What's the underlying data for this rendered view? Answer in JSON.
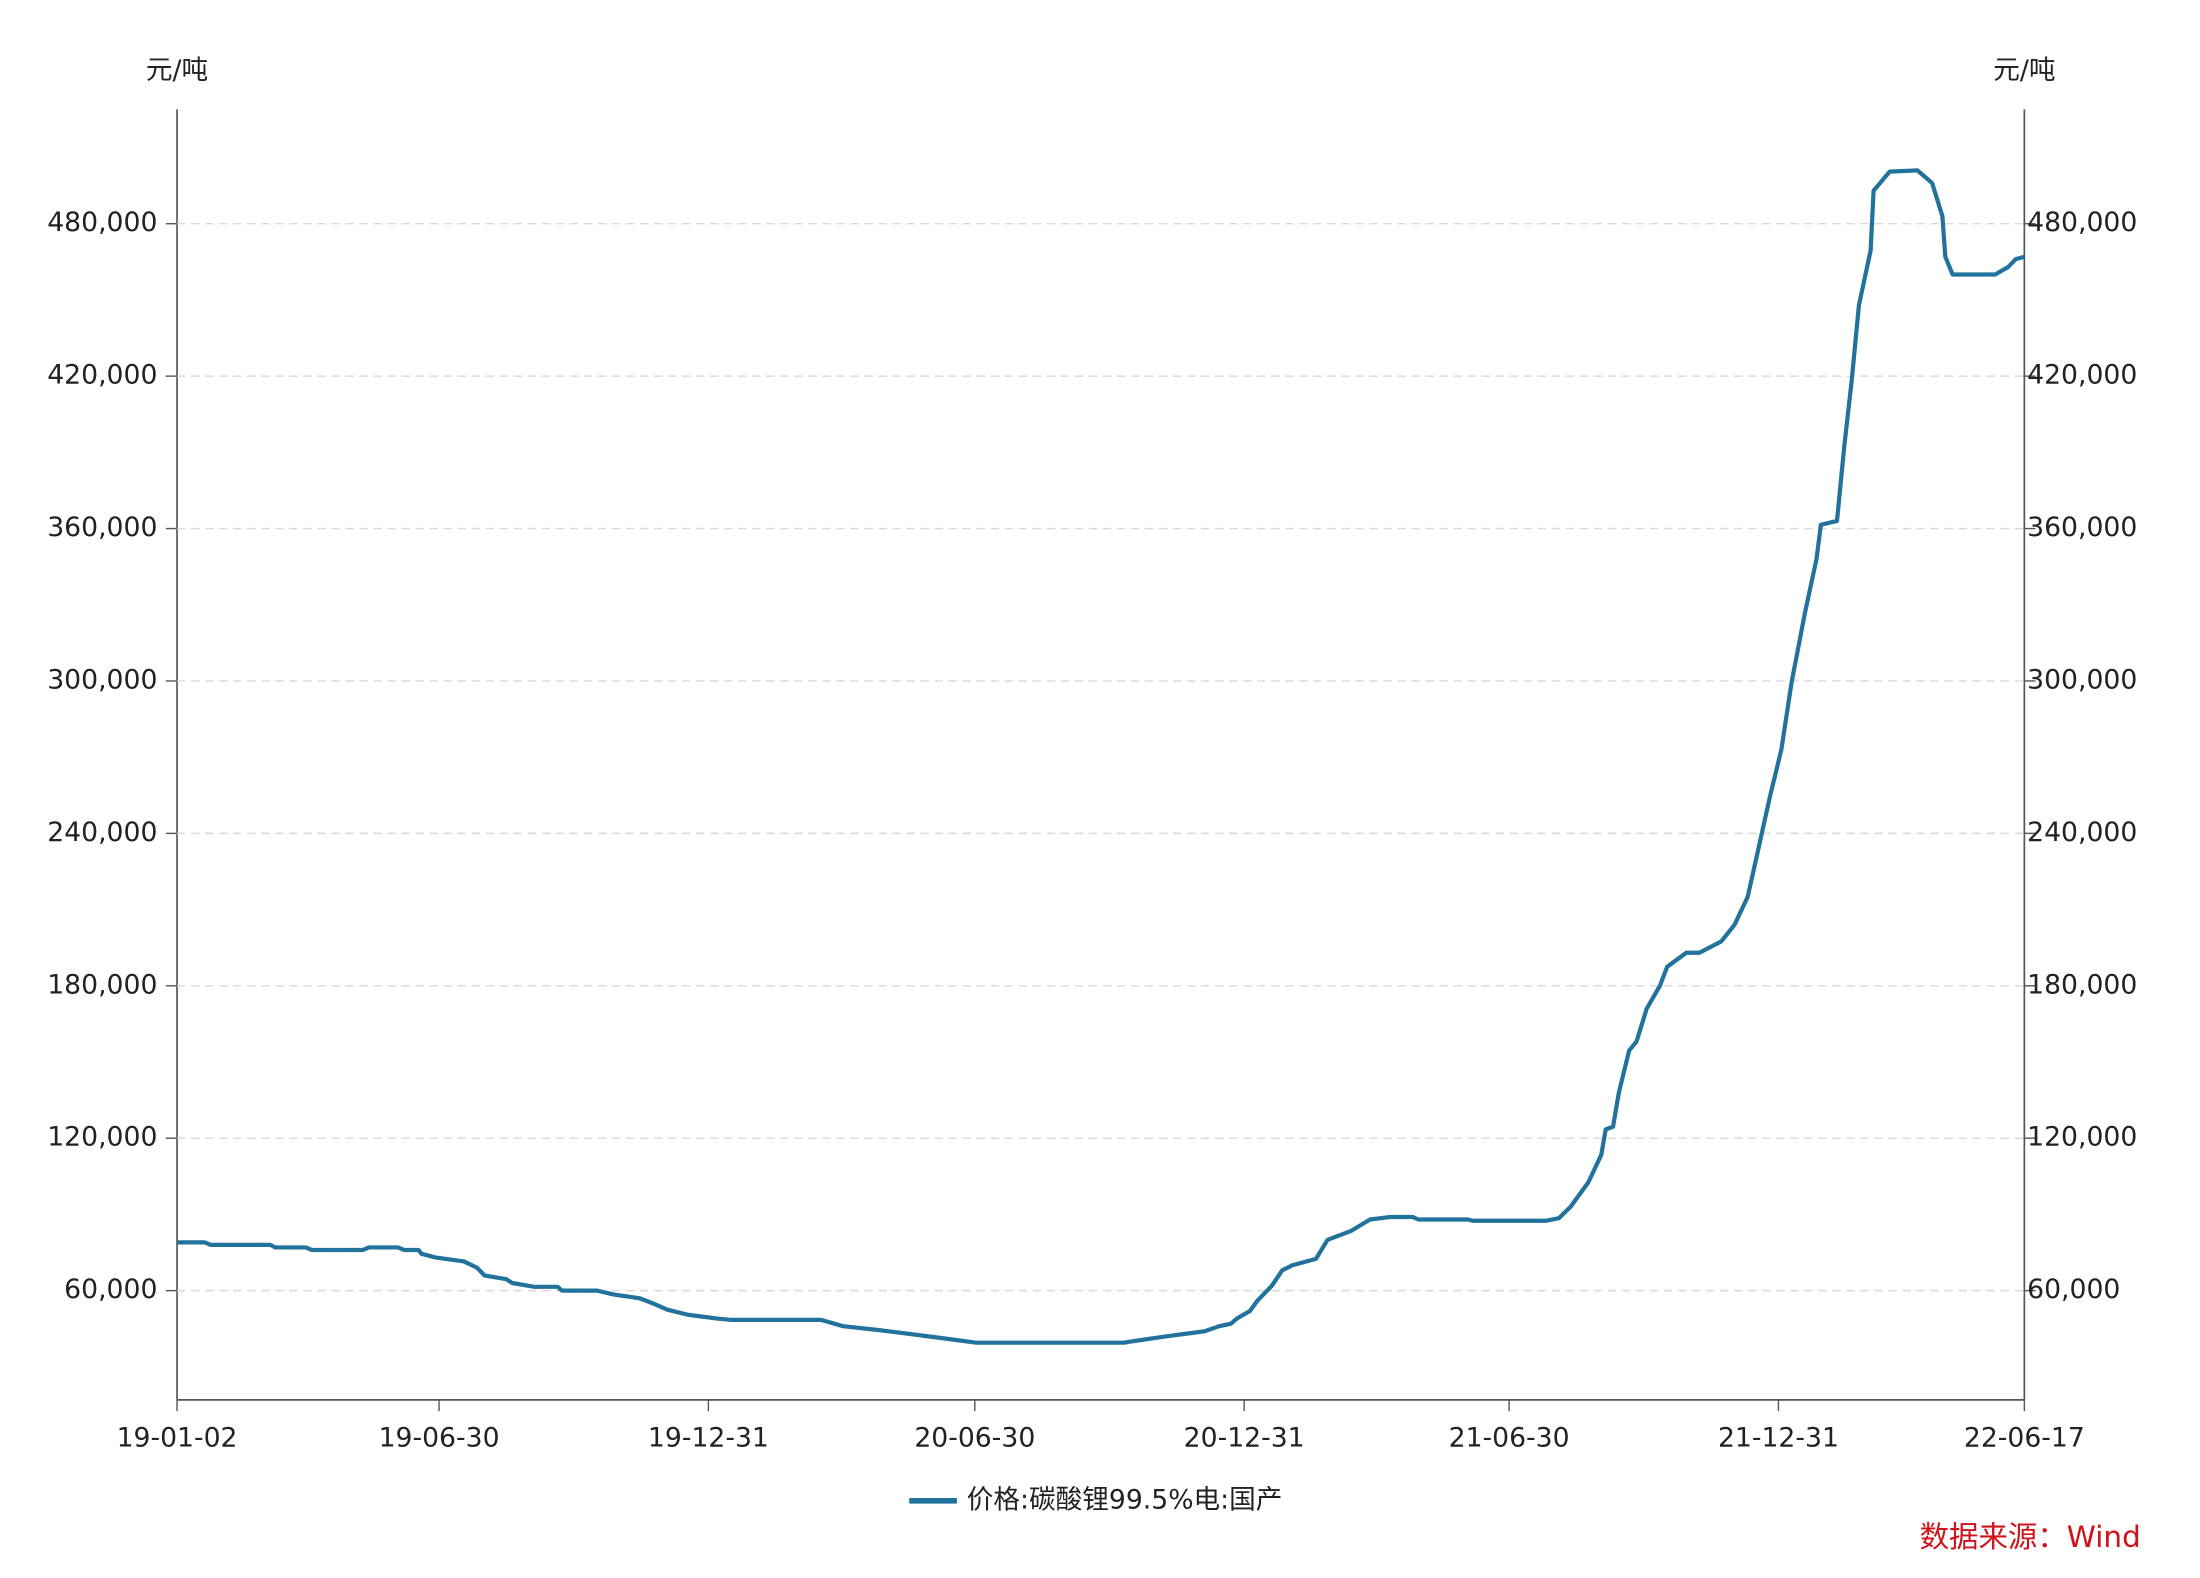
{
  "chart_data": {
    "type": "line",
    "y_label": "元/吨",
    "y2_label": "元/吨",
    "source": "数据来源：Wind",
    "x": [
      "19-01-02",
      "19-01-21",
      "19-01-25",
      "19-03-07",
      "19-03-10",
      "19-03-31",
      "19-04-04",
      "19-05-09",
      "19-05-13",
      "19-06-02",
      "19-06-06",
      "19-06-16",
      "19-06-18",
      "19-06-28",
      "19-07-17",
      "19-07-26",
      "19-07-31",
      "19-08-15",
      "19-08-19",
      "19-09-03",
      "19-09-19",
      "19-09-22",
      "19-10-16",
      "19-10-27",
      "19-11-14",
      "19-11-23",
      "19-12-03",
      "19-12-17",
      "20-01-06",
      "20-01-15",
      "20-03-17",
      "20-04-01",
      "20-04-25",
      "20-05-09",
      "20-06-05",
      "20-07-01",
      "20-10-10",
      "20-10-15",
      "20-11-08",
      "20-12-04",
      "20-12-14",
      "20-12-22",
      "20-12-26",
      "21-01-04",
      "21-01-09",
      "21-01-19",
      "21-01-26",
      "21-02-02",
      "21-02-18",
      "21-02-26",
      "21-03-14",
      "21-03-27",
      "21-04-10",
      "21-04-25",
      "21-04-29",
      "21-06-02",
      "21-06-05",
      "21-07-25",
      "21-08-03",
      "21-08-11",
      "21-08-23",
      "21-09-01",
      "21-09-04",
      "21-09-09",
      "21-09-13",
      "21-09-20",
      "21-09-25",
      "21-10-02",
      "21-10-11",
      "21-10-16",
      "21-10-29",
      "21-11-07",
      "21-11-22",
      "21-12-01",
      "21-12-10",
      "21-12-16",
      "21-12-25",
      "22-01-02",
      "22-01-09",
      "22-01-18",
      "22-01-26",
      "22-01-29",
      "22-02-09",
      "22-02-14",
      "22-02-19",
      "22-02-24",
      "22-03-04",
      "22-03-06",
      "22-03-17",
      "22-04-05",
      "22-04-15",
      "22-04-22",
      "22-04-24",
      "22-04-29",
      "22-05-28",
      "22-06-06",
      "22-06-11",
      "22-06-17"
    ],
    "series": [
      {
        "name": "价格:碳酸锂99.5%电:国产",
        "color": "#21729c",
        "values": [
          79000,
          79000,
          78000,
          78000,
          77000,
          77000,
          76000,
          76000,
          77000,
          77000,
          76000,
          76000,
          74500,
          73000,
          71500,
          69000,
          66000,
          64500,
          63000,
          61500,
          61500,
          60000,
          60000,
          58500,
          57000,
          55000,
          52500,
          50500,
          49000,
          48500,
          48500,
          46000,
          44500,
          43500,
          41500,
          39500,
          39500,
          40000,
          42000,
          44000,
          46000,
          47000,
          49000,
          52000,
          56000,
          62000,
          68000,
          70000,
          72500,
          80000,
          83500,
          88000,
          89000,
          89000,
          88000,
          88000,
          87500,
          87500,
          88500,
          93000,
          102500,
          113500,
          123500,
          124500,
          138000,
          154500,
          158000,
          171000,
          180000,
          187500,
          193000,
          193000,
          197500,
          204000,
          215000,
          230500,
          254000,
          273000,
          299500,
          326500,
          348000,
          361500,
          363000,
          392500,
          418000,
          448000,
          469500,
          493000,
          500500,
          501000,
          496000,
          483000,
          467000,
          460000,
          460000,
          463000,
          466000,
          467000
        ]
      }
    ],
    "xlim": [
      "19-01-02",
      "22-06-17"
    ],
    "xticks": [
      "19-01-02",
      "19-06-30",
      "19-12-31",
      "20-06-30",
      "20-12-31",
      "21-06-30",
      "21-12-31",
      "22-06-17"
    ],
    "ylim": [
      17000,
      525000
    ],
    "yticks": [
      {
        "value": 60000,
        "label": "60,000"
      },
      {
        "value": 120000,
        "label": "120,000"
      },
      {
        "value": 180000,
        "label": "180,000"
      },
      {
        "value": 240000,
        "label": "240,000"
      },
      {
        "value": 300000,
        "label": "300,000"
      },
      {
        "value": 360000,
        "label": "360,000"
      },
      {
        "value": 420000,
        "label": "420,000"
      },
      {
        "value": 480000,
        "label": "480,000"
      }
    ],
    "grid": true,
    "legend": "bottom"
  }
}
